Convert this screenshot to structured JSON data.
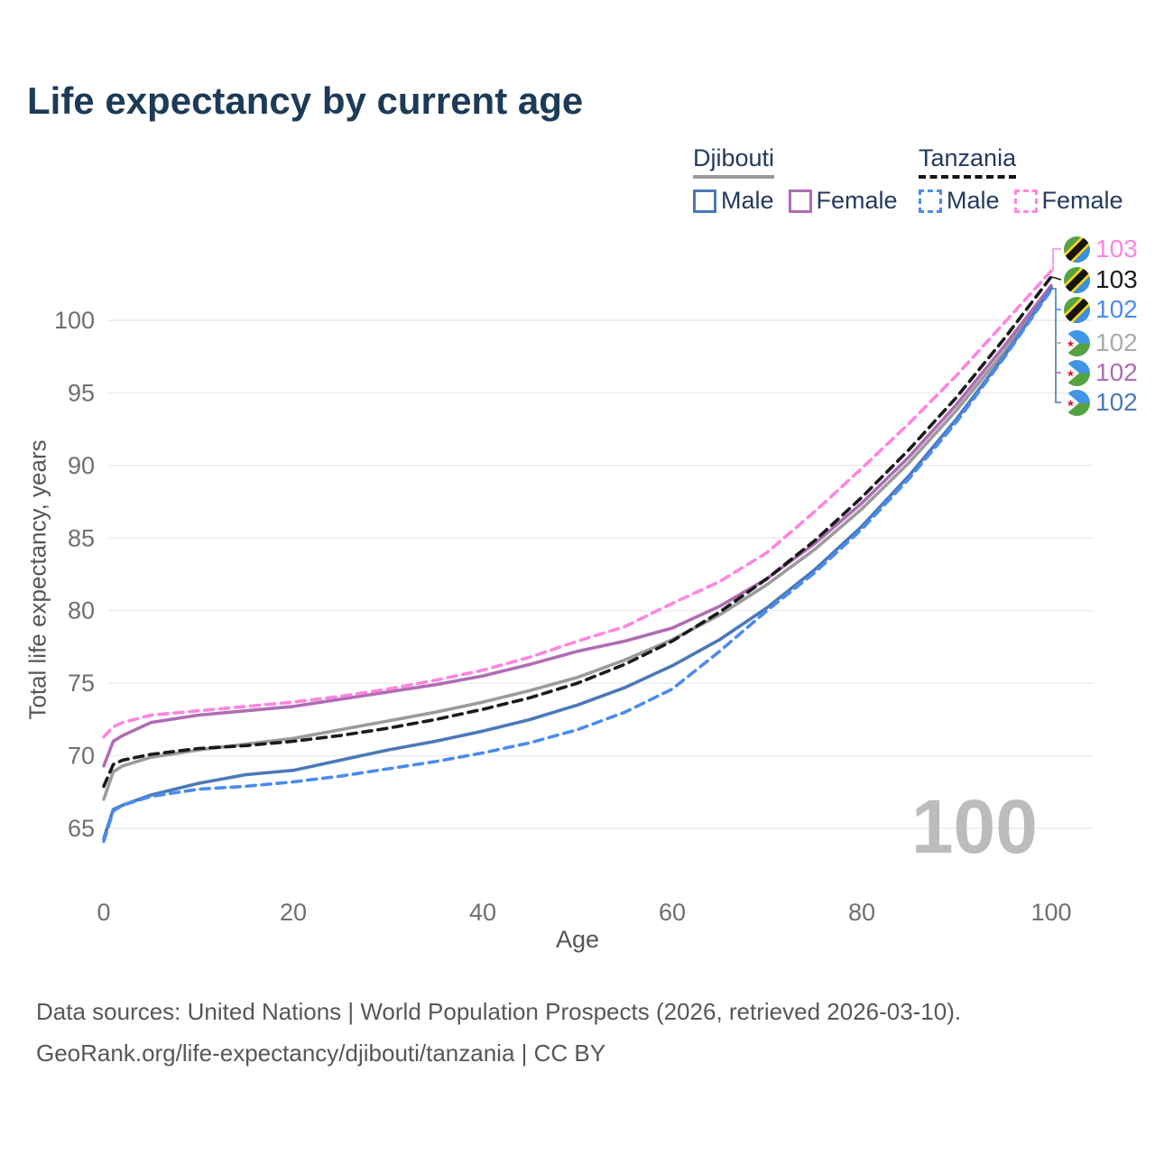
{
  "title": "Life expectancy by current age",
  "legend": {
    "groups": [
      {
        "name": "Djibouti",
        "line_style": "solid",
        "line_color": "#9a9a9a",
        "items": [
          {
            "label": "Male",
            "color": "#4a79b8",
            "dashed": false
          },
          {
            "label": "Female",
            "color": "#b06cb4",
            "dashed": false
          }
        ]
      },
      {
        "name": "Tanzania",
        "line_style": "dashed",
        "line_color": "#141414",
        "items": [
          {
            "label": "Male",
            "color": "#4b8bf0",
            "dashed": true
          },
          {
            "label": "Female",
            "color": "#ff85e0",
            "dashed": true
          }
        ]
      }
    ]
  },
  "chart_data": {
    "type": "line",
    "title": "Life expectancy by current age",
    "xlabel": "Age",
    "ylabel": "Total life expectancy, years",
    "xlim": [
      0,
      100
    ],
    "ylim": [
      62.5,
      104
    ],
    "xticks": [
      0,
      20,
      40,
      60,
      80,
      100
    ],
    "yticks": [
      65,
      70,
      75,
      80,
      85,
      90,
      95,
      100
    ],
    "grid": "horizontal",
    "legend_position": "top-right",
    "x": [
      0,
      1,
      2,
      5,
      10,
      15,
      20,
      25,
      30,
      35,
      40,
      45,
      50,
      55,
      60,
      65,
      70,
      75,
      80,
      85,
      90,
      95,
      100
    ],
    "series": [
      {
        "id": "djibouti-all",
        "name": "Djibouti (both sexes)",
        "color": "#9b9b9b",
        "dashed": false,
        "values": [
          67.0,
          68.9,
          69.3,
          69.9,
          70.4,
          70.8,
          71.2,
          71.8,
          72.4,
          73.0,
          73.7,
          74.5,
          75.4,
          76.6,
          78.0,
          79.7,
          81.8,
          84.2,
          87.0,
          90.2,
          93.8,
          97.8,
          102.3
        ]
      },
      {
        "id": "djibouti-female",
        "name": "Djibouti Female",
        "color": "#b06cb4",
        "dashed": false,
        "values": [
          69.3,
          71.0,
          71.4,
          72.3,
          72.8,
          73.1,
          73.4,
          73.9,
          74.4,
          74.9,
          75.5,
          76.3,
          77.2,
          77.9,
          78.8,
          80.3,
          82.2,
          84.6,
          87.4,
          90.6,
          94.2,
          98.2,
          102.4
        ]
      },
      {
        "id": "tanzania-all",
        "name": "Tanzania (both sexes)",
        "color": "#1a1a1a",
        "dashed": true,
        "values": [
          67.9,
          69.4,
          69.7,
          70.1,
          70.5,
          70.7,
          71.0,
          71.4,
          71.9,
          72.5,
          73.2,
          74.0,
          75.0,
          76.3,
          77.9,
          79.9,
          82.2,
          84.8,
          87.8,
          91.1,
          94.7,
          98.7,
          103.0
        ]
      },
      {
        "id": "djibouti-male",
        "name": "Djibouti Male",
        "color": "#4a79b8",
        "dashed": false,
        "values": [
          64.3,
          66.3,
          66.6,
          67.3,
          68.1,
          68.7,
          69.0,
          69.7,
          70.4,
          71.0,
          71.7,
          72.5,
          73.5,
          74.7,
          76.2,
          78.0,
          80.2,
          82.8,
          85.8,
          89.3,
          93.2,
          97.5,
          102.2
        ]
      },
      {
        "id": "tanzania-male",
        "name": "Tanzania Male",
        "color": "#4b8bf0",
        "dashed": true,
        "values": [
          64.1,
          66.2,
          66.6,
          67.2,
          67.7,
          67.9,
          68.2,
          68.6,
          69.1,
          69.6,
          70.2,
          70.9,
          71.8,
          73.0,
          74.6,
          77.2,
          80.0,
          82.6,
          85.6,
          89.1,
          93.0,
          97.4,
          102.1
        ]
      },
      {
        "id": "tanzania-female",
        "name": "Tanzania Female",
        "color": "#ff85e0",
        "dashed": true,
        "values": [
          71.3,
          72.0,
          72.3,
          72.8,
          73.1,
          73.4,
          73.7,
          74.1,
          74.6,
          75.2,
          75.9,
          76.8,
          77.9,
          78.9,
          80.5,
          82.0,
          84.0,
          86.8,
          89.8,
          92.9,
          96.2,
          99.8,
          103.4
        ]
      }
    ]
  },
  "end_labels": [
    {
      "value": "103",
      "color": "#ff85e0",
      "flag": "tanzania-flag-icon",
      "series": "tanzania-female"
    },
    {
      "value": "103",
      "color": "#1a1a1a",
      "flag": "tanzania-flag-icon",
      "series": "tanzania-all"
    },
    {
      "value": "102",
      "color": "#4b8bf0",
      "flag": "tanzania-flag-icon",
      "series": "tanzania-male"
    },
    {
      "value": "102",
      "color": "#aaaaaa",
      "flag": "djibouti-flag-icon",
      "series": "djibouti-all"
    },
    {
      "value": "102",
      "color": "#b06cb4",
      "flag": "djibouti-flag-icon",
      "series": "djibouti-female"
    },
    {
      "value": "102",
      "color": "#4a79b8",
      "flag": "djibouti-flag-icon",
      "series": "djibouti-male"
    }
  ],
  "watermark": "100",
  "footer": {
    "line1": "Data sources: United Nations | World Population Prospects (2026, retrieved 2026-03-10).",
    "line2": "GeoRank.org/life-expectancy/djibouti/tanzania | CC BY"
  }
}
